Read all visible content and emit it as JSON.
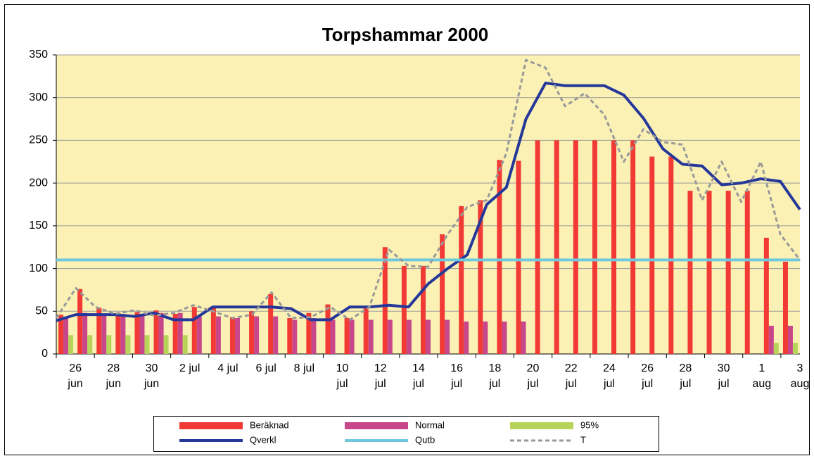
{
  "chart_data": {
    "type": "bar-line",
    "title": "Torpshammar 2000",
    "categories": [
      "26 jun",
      null,
      "28 jun",
      null,
      "30 jun",
      null,
      "2 jul",
      null,
      "4 jul",
      null,
      "6 jul",
      null,
      "8 jul",
      null,
      "10 jul",
      null,
      "12 jul",
      null,
      "14 jul",
      null,
      "16 jul",
      null,
      "18 jul",
      null,
      "20 jul",
      null,
      "22 jul",
      null,
      "24 jul",
      null,
      "26 jul",
      null,
      "28 jul",
      null,
      "30 jul",
      null,
      "1 aug",
      null,
      "3 aug"
    ],
    "ylim": [
      0,
      350
    ],
    "yticks": [
      0,
      50,
      100,
      150,
      200,
      250,
      300,
      350
    ],
    "grid": true,
    "plot_background": "#fbf1b5",
    "series": [
      {
        "name": "Beräknad",
        "kind": "bar",
        "color": "#f23a35",
        "values": [
          46,
          76,
          54,
          48,
          49,
          51,
          47,
          55,
          55,
          43,
          50,
          70,
          42,
          48,
          58,
          42,
          55,
          125,
          103,
          103,
          140,
          173,
          180,
          227,
          226,
          250,
          250,
          250,
          250,
          250,
          250,
          231,
          231,
          191,
          191,
          191,
          191,
          136,
          108
        ]
      },
      {
        "name": "Normal",
        "kind": "bar",
        "color": "#c8468a",
        "values": [
          42,
          48,
          45,
          45,
          47,
          48,
          48,
          44,
          44,
          42,
          44,
          44,
          40,
          42,
          40,
          40,
          40,
          40,
          40,
          40,
          40,
          38,
          38,
          38,
          38,
          null,
          null,
          null,
          null,
          null,
          null,
          null,
          null,
          null,
          null,
          null,
          null,
          33,
          33
        ]
      },
      {
        "name": "95%",
        "kind": "bar",
        "color": "#b7d35a",
        "values": [
          22,
          22,
          22,
          22,
          22,
          22,
          22,
          null,
          null,
          null,
          null,
          null,
          null,
          null,
          null,
          null,
          null,
          null,
          null,
          null,
          null,
          null,
          null,
          null,
          null,
          null,
          null,
          null,
          null,
          null,
          null,
          null,
          null,
          null,
          null,
          null,
          null,
          13,
          13
        ]
      },
      {
        "name": "Qverkl",
        "kind": "line",
        "color": "#25389a",
        "values": [
          39,
          46,
          46,
          46,
          44,
          48,
          40,
          40,
          55,
          55,
          55,
          55,
          53,
          40,
          40,
          55,
          55,
          57,
          55,
          82,
          100,
          116,
          175,
          195,
          275,
          317,
          314,
          314,
          314,
          303,
          276,
          240,
          222,
          220,
          198,
          200,
          205,
          202,
          169
        ]
      },
      {
        "name": "Qutb",
        "kind": "line",
        "color": "#6fc9dd",
        "values": [
          110,
          110,
          110,
          110,
          110,
          110,
          110,
          110,
          110,
          110,
          110,
          110,
          110,
          110,
          110,
          110,
          110,
          110,
          110,
          110,
          110,
          110,
          110,
          110,
          110,
          110,
          110,
          110,
          110,
          110,
          110,
          110,
          110,
          110,
          110,
          110,
          110,
          110,
          110
        ]
      },
      {
        "name": "T",
        "kind": "dashed-line",
        "color": "#999999",
        "values": [
          42,
          77,
          55,
          47,
          51,
          45,
          48,
          57,
          50,
          42,
          46,
          72,
          42,
          43,
          55,
          40,
          55,
          122,
          103,
          102,
          140,
          172,
          180,
          235,
          344,
          335,
          290,
          305,
          280,
          225,
          263,
          248,
          245,
          180,
          225,
          178,
          225,
          140,
          110
        ]
      }
    ]
  }
}
